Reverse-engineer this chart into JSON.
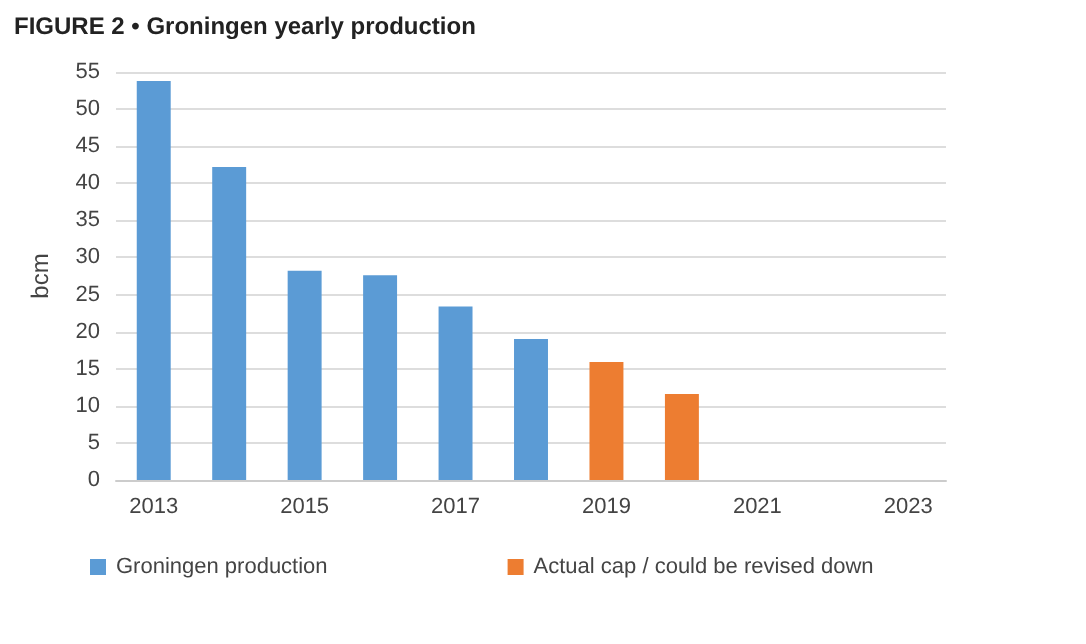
{
  "chart_data": {
    "type": "bar",
    "title": "FIGURE 2 • Groningen yearly production",
    "ylabel": "bcm",
    "categories": [
      "2013",
      null,
      "2015",
      null,
      "2017",
      null,
      "2019",
      null,
      "2021",
      null,
      "2023"
    ],
    "series": [
      {
        "name": "Groningen production",
        "color": "#5b9bd5",
        "values": [
          53.8,
          42.2,
          28.2,
          27.6,
          23.4,
          19.0,
          null,
          null,
          null,
          null,
          null
        ]
      },
      {
        "name": "Actual cap / could be revised down",
        "color": "#ed7d31",
        "values": [
          null,
          null,
          null,
          null,
          null,
          null,
          15.9,
          11.6,
          null,
          null,
          null
        ]
      }
    ],
    "ylim": [
      0,
      55
    ],
    "yticks": [
      0,
      5,
      10,
      15,
      20,
      25,
      30,
      35,
      40,
      45,
      50,
      55
    ],
    "grid": "y",
    "legend": "bottom"
  }
}
